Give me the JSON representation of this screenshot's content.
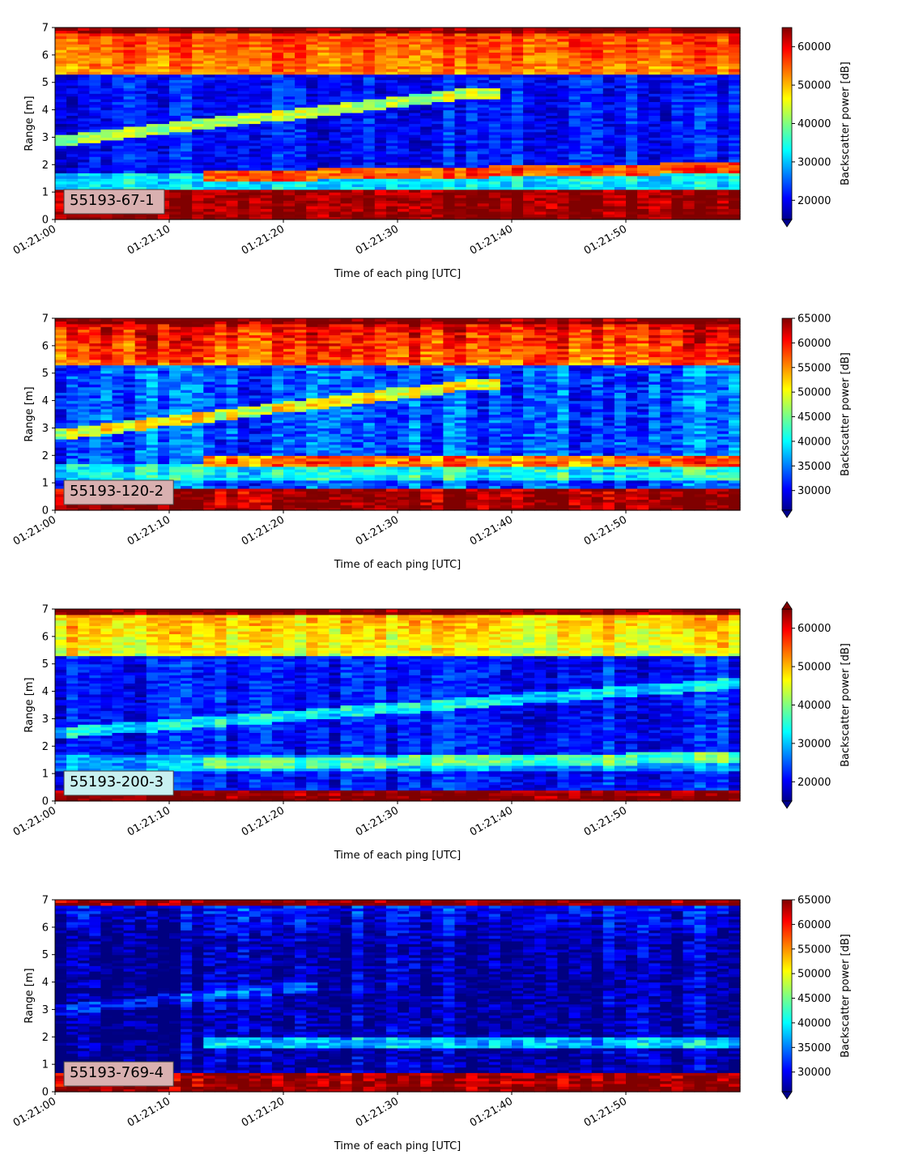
{
  "chart_data": [
    {
      "type": "heatmap",
      "panel_label": "55193-67-1",
      "label_box_color": "#d9b0b0",
      "xlabel": "Time of each ping [UTC]",
      "ylabel": "Range [m]",
      "x_range": [
        "01:21:00",
        "01:21:59"
      ],
      "x_ticks": [
        "01:21:00",
        "01:21:10",
        "01:21:20",
        "01:21:30",
        "01:21:40",
        "01:21:50"
      ],
      "ylim": [
        0,
        7
      ],
      "y_ticks": [
        "0",
        "1",
        "2",
        "3",
        "4",
        "5",
        "6",
        "7"
      ],
      "colorbar": {
        "label": "Backscatter power [dB]",
        "range": [
          15000,
          65000
        ],
        "ticks": [
          "20000",
          "30000",
          "40000",
          "50000",
          "60000"
        ],
        "extend": "min",
        "colormap": "jet"
      },
      "features": {
        "top_band": 65000,
        "upper_layer": 52000,
        "water": 22000,
        "rising_target": {
          "start_range": 2.9,
          "end_range": 4.6,
          "end_time": "01:21:36",
          "value": 43000
        },
        "lower_band": {
          "start_range": 1.5,
          "end_range": 1.9,
          "value": 55000
        },
        "near_band_top": 1.1
      }
    },
    {
      "type": "heatmap",
      "panel_label": "55193-120-2",
      "label_box_color": "#d9b0b0",
      "xlabel": "Time of each ping [UTC]",
      "ylabel": "Range [m]",
      "x_range": [
        "01:21:00",
        "01:21:59"
      ],
      "x_ticks": [
        "01:21:00",
        "01:21:10",
        "01:21:20",
        "01:21:30",
        "01:21:40",
        "01:21:50"
      ],
      "ylim": [
        0,
        7
      ],
      "y_ticks": [
        "0",
        "1",
        "2",
        "3",
        "4",
        "5",
        "6",
        "7"
      ],
      "colorbar": {
        "label": "Backscatter power [dB]",
        "range": [
          26000,
          65000
        ],
        "ticks": [
          "30000",
          "35000",
          "40000",
          "45000",
          "50000",
          "55000",
          "60000",
          "65000"
        ],
        "extend": "min",
        "colormap": "jet"
      },
      "features": {
        "top_band": 65000,
        "upper_layer": 56000,
        "water": 34000,
        "rising_target": {
          "start_range": 2.8,
          "end_range": 4.6,
          "end_time": "01:21:36",
          "value": 50000
        },
        "lower_band": {
          "start_range": 1.8,
          "end_range": 1.8,
          "value": 56000
        },
        "near_band_top": 0.8
      }
    },
    {
      "type": "heatmap",
      "panel_label": "55193-200-3",
      "label_box_color": "#c8f0f0",
      "xlabel": "Time of each ping [UTC]",
      "ylabel": "Range [m]",
      "x_range": [
        "01:21:00",
        "01:21:59"
      ],
      "x_ticks": [
        "01:21:00",
        "01:21:10",
        "01:21:20",
        "01:21:30",
        "01:21:40",
        "01:21:50"
      ],
      "ylim": [
        0,
        7
      ],
      "y_ticks": [
        "0",
        "1",
        "2",
        "3",
        "4",
        "5",
        "6",
        "7"
      ],
      "colorbar": {
        "label": "Backscatter power [dB]",
        "range": [
          15000,
          65000
        ],
        "ticks": [
          "20000",
          "30000",
          "40000",
          "50000",
          "60000"
        ],
        "extend": "both",
        "colormap": "jet"
      },
      "features": {
        "top_band": 65000,
        "upper_layer": 45000,
        "water": 22000,
        "rising_target": {
          "start_range": 2.5,
          "end_range": 4.3,
          "end_time": "01:21:59",
          "value": 33000
        },
        "lower_band": {
          "start_range": 1.3,
          "end_range": 1.6,
          "value": 38000
        },
        "near_band_top": 0.4
      }
    },
    {
      "type": "heatmap",
      "panel_label": "55193-769-4",
      "label_box_color": "#d9b0b0",
      "xlabel": "Time of each ping [UTC]",
      "ylabel": "Range [m]",
      "x_range": [
        "01:21:00",
        "01:21:59"
      ],
      "x_ticks": [
        "01:21:00",
        "01:21:10",
        "01:21:20",
        "01:21:30",
        "01:21:40",
        "01:21:50"
      ],
      "ylim": [
        0,
        7
      ],
      "y_ticks": [
        "0",
        "1",
        "2",
        "3",
        "4",
        "5",
        "6",
        "7"
      ],
      "colorbar": {
        "label": "Backscatter power [dB]",
        "range": [
          26000,
          65000
        ],
        "ticks": [
          "30000",
          "35000",
          "40000",
          "45000",
          "50000",
          "55000",
          "60000",
          "65000"
        ],
        "extend": "min",
        "colormap": "jet"
      },
      "features": {
        "top_band": 65000,
        "upper_layer": 27000,
        "water": 27500,
        "rising_target": {
          "start_range": 3.0,
          "end_range": 3.8,
          "end_time": "01:21:20",
          "value": 33000
        },
        "lower_band": {
          "start_range": 1.8,
          "end_range": 1.8,
          "value": 38000
        },
        "near_band_top": 0.7
      }
    }
  ]
}
